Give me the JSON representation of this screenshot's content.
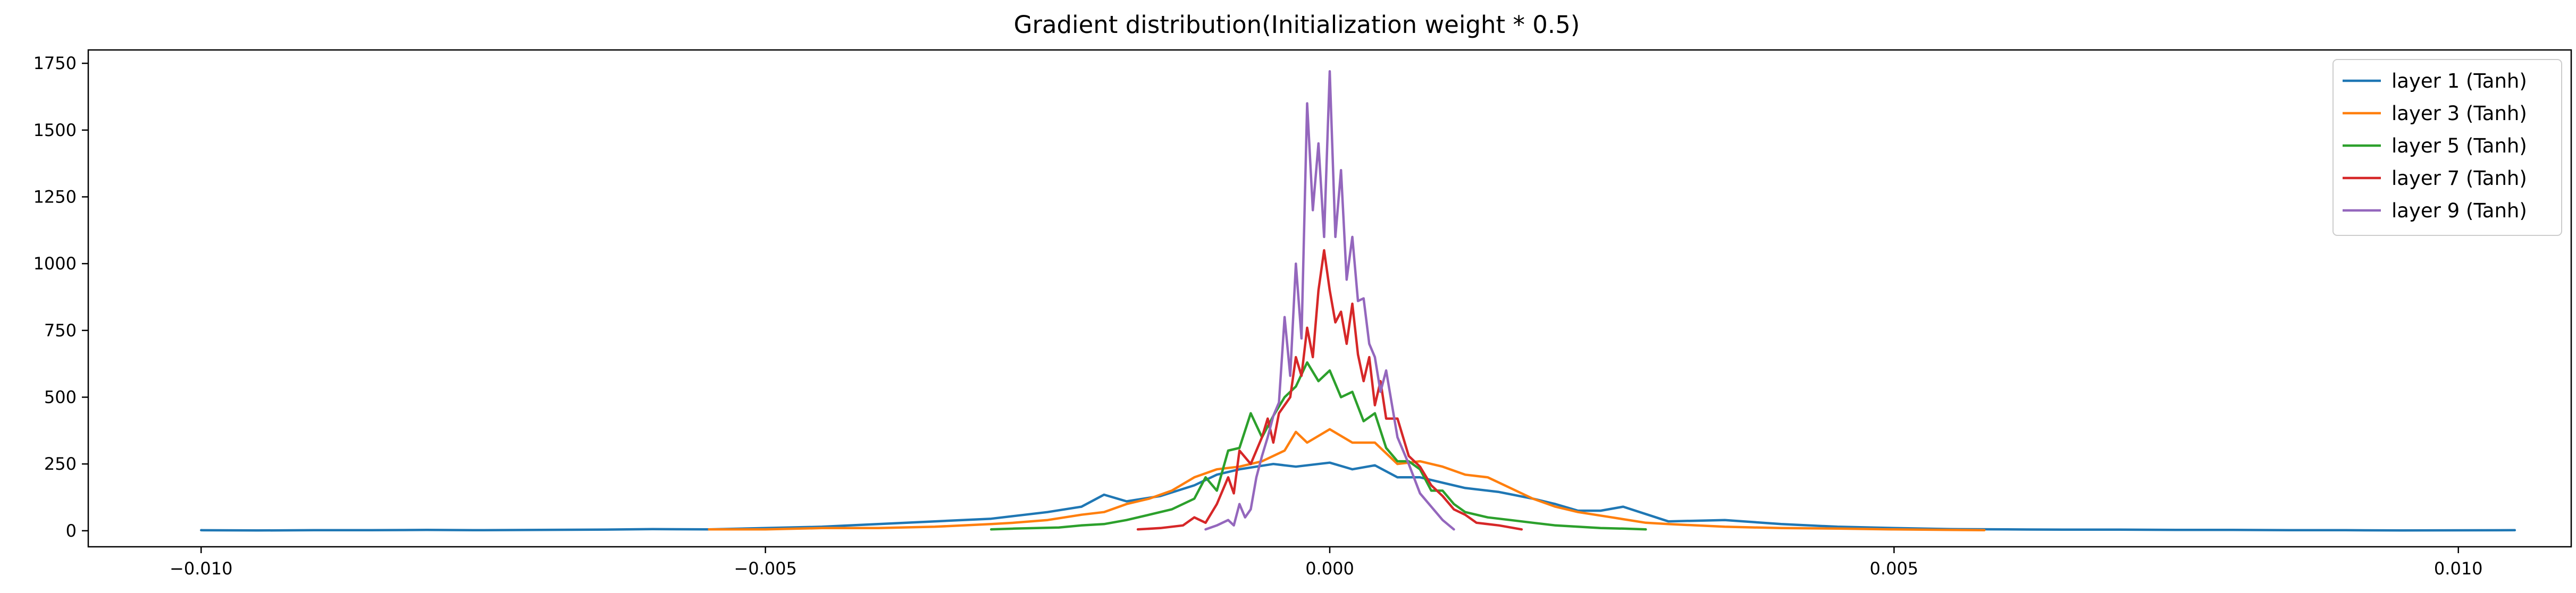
{
  "chart_data": {
    "type": "line",
    "title": "Gradient distribution(Initialization weight * 0.5)",
    "xlabel": "",
    "ylabel": "",
    "xlim": [
      -0.011,
      0.011
    ],
    "ylim": [
      -60,
      1800
    ],
    "xticks": [
      -0.01,
      -0.005,
      0.0,
      0.005,
      0.01
    ],
    "xtick_labels": [
      "−0.010",
      "−0.005",
      "0.000",
      "0.005",
      "0.010"
    ],
    "yticks": [
      0,
      250,
      500,
      750,
      1000,
      1250,
      1500,
      1750
    ],
    "ytick_labels": [
      "0",
      "250",
      "500",
      "750",
      "1000",
      "1250",
      "1500",
      "1750"
    ],
    "grid": false,
    "legend_position": "top-right",
    "series": [
      {
        "name": "layer 1 (Tanh)",
        "color": "#1f77b4",
        "x": [
          -0.01,
          -0.0095,
          -0.009,
          -0.0085,
          -0.008,
          -0.0075,
          -0.007,
          -0.0065,
          -0.006,
          -0.0055,
          -0.005,
          -0.0045,
          -0.004,
          -0.0035,
          -0.003,
          -0.0028,
          -0.0025,
          -0.0022,
          -0.002,
          -0.0018,
          -0.0015,
          -0.0012,
          -0.001,
          -0.0008,
          -0.0005,
          -0.0003,
          0.0,
          0.0002,
          0.0004,
          0.0006,
          0.0008,
          0.001,
          0.0012,
          0.0015,
          0.0018,
          0.002,
          0.0022,
          0.0024,
          0.0026,
          0.003,
          0.0035,
          0.004,
          0.0045,
          0.005,
          0.0055,
          0.006,
          0.0065,
          0.007,
          0.0075,
          0.008,
          0.0085,
          0.009,
          0.0095,
          0.0105
        ],
        "y": [
          2,
          1,
          2,
          2,
          3,
          2,
          3,
          4,
          6,
          5,
          10,
          15,
          25,
          35,
          45,
          55,
          70,
          90,
          135,
          110,
          130,
          170,
          210,
          230,
          250,
          240,
          255,
          230,
          245,
          200,
          200,
          180,
          160,
          145,
          120,
          100,
          75,
          75,
          90,
          35,
          40,
          25,
          15,
          10,
          6,
          5,
          4,
          4,
          3,
          3,
          2,
          2,
          1,
          2
        ]
      },
      {
        "name": "layer 3 (Tanh)",
        "color": "#ff7f0e",
        "x": [
          -0.0055,
          -0.005,
          -0.0045,
          -0.004,
          -0.0035,
          -0.003,
          -0.0028,
          -0.0025,
          -0.0022,
          -0.002,
          -0.0018,
          -0.0016,
          -0.0014,
          -0.0012,
          -0.001,
          -0.0008,
          -0.0006,
          -0.0004,
          -0.0003,
          -0.0002,
          0.0,
          0.0002,
          0.0004,
          0.0006,
          0.0008,
          0.001,
          0.0012,
          0.0014,
          0.0016,
          0.0018,
          0.002,
          0.0022,
          0.0025,
          0.0028,
          0.003,
          0.0035,
          0.004,
          0.0045,
          0.005,
          0.0055,
          0.0058
        ],
        "y": [
          5,
          5,
          10,
          10,
          15,
          25,
          30,
          40,
          60,
          70,
          100,
          120,
          150,
          200,
          230,
          240,
          260,
          300,
          370,
          330,
          380,
          330,
          330,
          250,
          260,
          240,
          210,
          200,
          160,
          120,
          90,
          70,
          50,
          30,
          25,
          15,
          10,
          8,
          5,
          3,
          2
        ]
      },
      {
        "name": "layer 5 (Tanh)",
        "color": "#2ca02c",
        "x": [
          -0.003,
          -0.0028,
          -0.0026,
          -0.0024,
          -0.0022,
          -0.002,
          -0.0018,
          -0.0016,
          -0.0014,
          -0.0012,
          -0.0011,
          -0.001,
          -0.0009,
          -0.0008,
          -0.0007,
          -0.0006,
          -0.0005,
          -0.0004,
          -0.0003,
          -0.0002,
          -0.0001,
          0.0,
          0.0001,
          0.0002,
          0.0003,
          0.0004,
          0.0005,
          0.0006,
          0.0007,
          0.0008,
          0.0009,
          0.001,
          0.0011,
          0.0012,
          0.0014,
          0.0016,
          0.0018,
          0.002,
          0.0022,
          0.0024,
          0.0026,
          0.0028
        ],
        "y": [
          5,
          8,
          10,
          12,
          20,
          25,
          40,
          60,
          80,
          120,
          200,
          150,
          300,
          310,
          440,
          350,
          430,
          500,
          540,
          630,
          560,
          600,
          500,
          520,
          410,
          440,
          310,
          260,
          260,
          230,
          150,
          150,
          100,
          70,
          50,
          40,
          30,
          20,
          15,
          10,
          8,
          5
        ]
      },
      {
        "name": "layer 7 (Tanh)",
        "color": "#d62728",
        "x": [
          -0.0017,
          -0.0015,
          -0.0013,
          -0.0012,
          -0.0011,
          -0.001,
          -0.0009,
          -0.00085,
          -0.0008,
          -0.0007,
          -0.0006,
          -0.00055,
          -0.0005,
          -0.00045,
          -0.0004,
          -0.00035,
          -0.0003,
          -0.00025,
          -0.0002,
          -0.00015,
          -0.0001,
          -5e-05,
          0.0,
          5e-05,
          0.0001,
          0.00015,
          0.0002,
          0.00025,
          0.0003,
          0.00035,
          0.0004,
          0.00045,
          0.0005,
          0.0006,
          0.0007,
          0.0008,
          0.0009,
          0.001,
          0.0011,
          0.0012,
          0.0013,
          0.0015,
          0.0017
        ],
        "y": [
          5,
          10,
          20,
          50,
          30,
          100,
          200,
          140,
          300,
          250,
          350,
          420,
          330,
          440,
          470,
          500,
          650,
          580,
          760,
          650,
          900,
          1050,
          900,
          780,
          820,
          700,
          850,
          660,
          560,
          650,
          470,
          560,
          420,
          420,
          280,
          240,
          170,
          130,
          80,
          60,
          30,
          20,
          5
        ]
      },
      {
        "name": "layer 9 (Tanh)",
        "color": "#9467bd",
        "x": [
          -0.0011,
          -0.001,
          -0.0009,
          -0.00085,
          -0.0008,
          -0.00075,
          -0.0007,
          -0.00065,
          -0.0006,
          -0.00055,
          -0.0005,
          -0.00045,
          -0.0004,
          -0.00035,
          -0.0003,
          -0.00025,
          -0.0002,
          -0.00015,
          -0.0001,
          -5e-05,
          0.0,
          5e-05,
          0.0001,
          0.00015,
          0.0002,
          0.00025,
          0.0003,
          0.00035,
          0.0004,
          0.00045,
          0.0005,
          0.0006,
          0.0007,
          0.0008,
          0.0009,
          0.001,
          0.0011
        ],
        "y": [
          5,
          20,
          40,
          20,
          100,
          50,
          80,
          200,
          280,
          350,
          430,
          480,
          800,
          580,
          1000,
          720,
          1600,
          1200,
          1450,
          1100,
          1720,
          1100,
          1350,
          940,
          1100,
          860,
          870,
          700,
          650,
          520,
          600,
          350,
          250,
          140,
          90,
          40,
          5
        ]
      }
    ]
  }
}
